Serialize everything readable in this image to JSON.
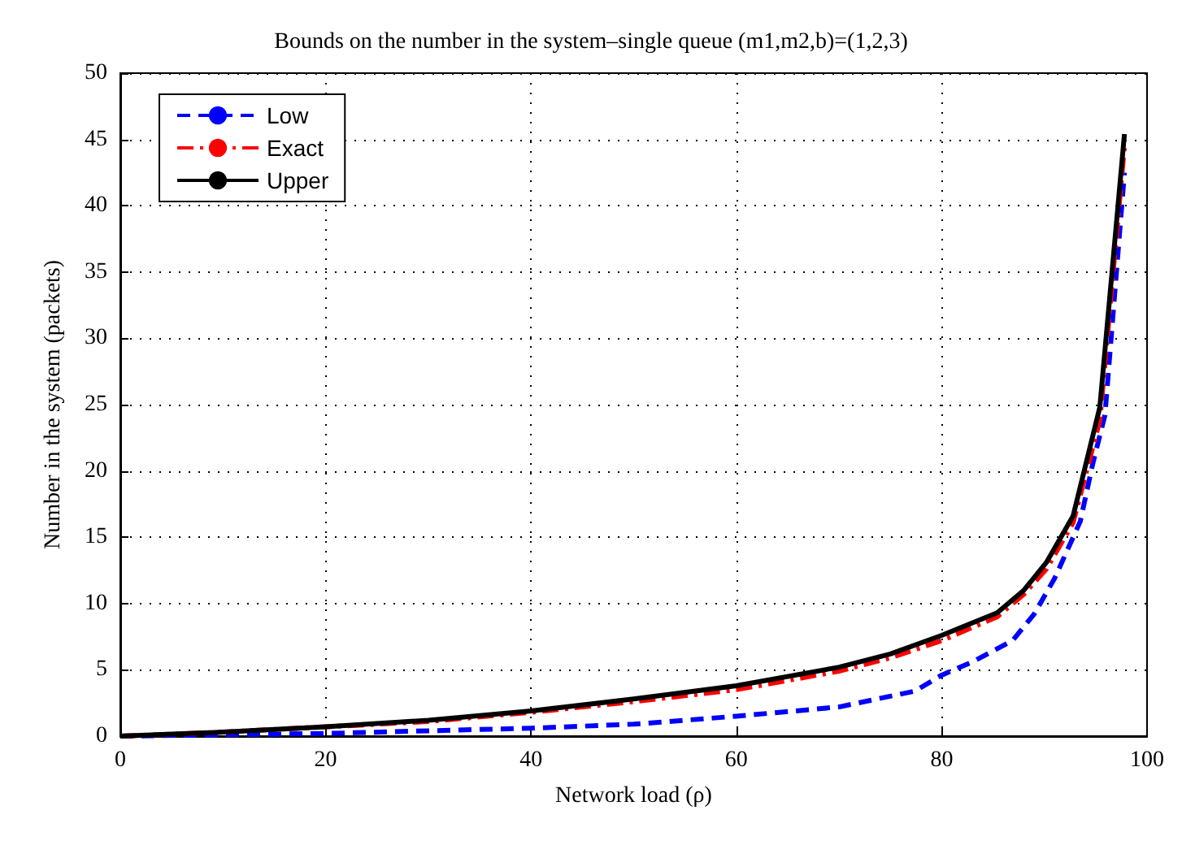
{
  "chart_data": {
    "type": "line",
    "title": "Bounds on the number in the system–single queue (m1,m2,b)=(1,2,3)",
    "xlabel": "Network load (ρ)",
    "ylabel": "Number in the system (packets)",
    "xlim": [
      0,
      100
    ],
    "xticks": [
      0,
      20,
      40,
      60,
      80,
      100
    ],
    "ylim": [
      0,
      50
    ],
    "yticks": [
      0,
      5,
      10,
      15,
      20,
      25,
      30,
      35,
      40,
      45,
      50
    ],
    "grid": true,
    "legend": "top left",
    "series": [
      {
        "name": "Low",
        "color": "#0000ff",
        "line_style": "dashed",
        "x": [
          0,
          10,
          20,
          30,
          40,
          50,
          60,
          70,
          77.4,
          80,
          83,
          86.9,
          89,
          91,
          93.5,
          94.7,
          95.9,
          97.8
        ],
        "values": [
          0,
          0.1,
          0.2,
          0.4,
          0.6,
          0.9,
          1.5,
          2.2,
          3.4,
          4.6,
          5.6,
          7.2,
          9.2,
          11.9,
          16.2,
          20.5,
          24.2,
          42.5
        ]
      },
      {
        "name": "Exact",
        "color": "#ff0000",
        "line_style": "dashdot",
        "x": [
          0,
          10,
          20,
          30,
          40,
          50,
          60,
          70,
          75,
          80,
          85.4,
          88,
          90.2,
          92.8,
          95.4,
          97.8
        ],
        "values": [
          0,
          0.3,
          0.7,
          1.1,
          1.8,
          2.6,
          3.5,
          4.9,
          5.9,
          7.2,
          9.0,
          10.7,
          12.6,
          16.1,
          23.8,
          44.5
        ]
      },
      {
        "name": "Upper",
        "color": "#000000",
        "line_style": "solid",
        "x": [
          0,
          10,
          20,
          30,
          40,
          50,
          60,
          70,
          75,
          80,
          85.4,
          88,
          90.2,
          92.8,
          95.4,
          97.8
        ],
        "values": [
          0,
          0.3,
          0.7,
          1.2,
          1.9,
          2.8,
          3.8,
          5.2,
          6.2,
          7.6,
          9.3,
          11,
          13.1,
          16.6,
          24.8,
          45.4
        ]
      }
    ]
  }
}
